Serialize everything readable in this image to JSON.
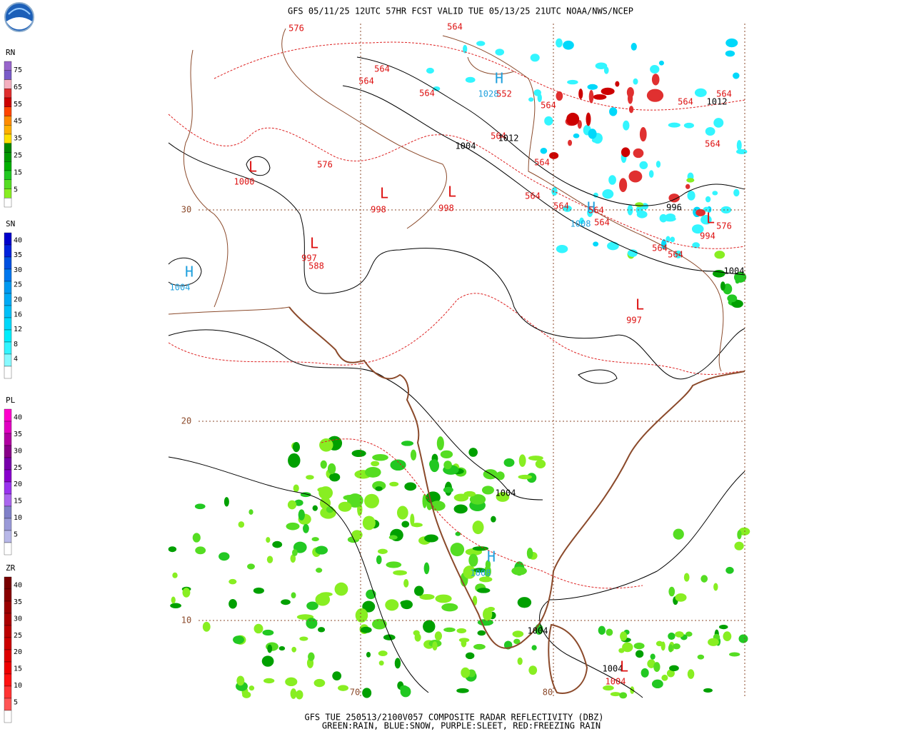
{
  "header": {
    "title": "GFS 05/11/25 12UTC 57HR FCST VALID TUE 05/13/25 21UTC NOAA/NWS/NCEP"
  },
  "footer": {
    "line1": "GFS TUE 250513/2100V057 COMPOSITE RADAR REFLECTIVITY (DBZ)",
    "line2": "GREEN:RAIN, BLUE:SNOW, PURPLE:SLEET, RED:FREEZING RAIN"
  },
  "legends": [
    {
      "name": "RN",
      "labels": [
        "75",
        "65",
        "55",
        "45",
        "35",
        "25",
        "15",
        "5"
      ],
      "colors": [
        "#9966cc",
        "#7a5cc8",
        "#f4b0c0",
        "#e03030",
        "#cc0000",
        "#ff4500",
        "#ff8c00",
        "#ffb000",
        "#ffe000",
        "#008800",
        "#009900",
        "#00b000",
        "#22c822",
        "#55dd22",
        "#88ee22",
        "#ffffff"
      ]
    },
    {
      "name": "SN",
      "labels": [
        "40",
        "35",
        "30",
        "25",
        "20",
        "16",
        "12",
        "8",
        "4"
      ],
      "colors": [
        "#0000cc",
        "#0022dd",
        "#0050e0",
        "#0077ee",
        "#0099f0",
        "#00aaf5",
        "#00c0f8",
        "#00d8fa",
        "#00eefc",
        "#33f5ff",
        "#88faff",
        "#ffffff"
      ]
    },
    {
      "name": "PL",
      "labels": [
        "40",
        "35",
        "30",
        "25",
        "20",
        "15",
        "10",
        "5"
      ],
      "colors": [
        "#ff00cc",
        "#e000c0",
        "#b000a0",
        "#880088",
        "#7700aa",
        "#8800cc",
        "#9933ee",
        "#aa66ee",
        "#8080c8",
        "#9a9ad8",
        "#b8b8e8",
        "#ffffff"
      ]
    },
    {
      "name": "ZR",
      "labels": [
        "40",
        "35",
        "30",
        "25",
        "20",
        "15",
        "10",
        "5"
      ],
      "colors": [
        "#770000",
        "#880000",
        "#990000",
        "#aa0000",
        "#bb0000",
        "#cc0000",
        "#dd0000",
        "#ee0000",
        "#ff1111",
        "#ff3333",
        "#ff5555",
        "#ffffff"
      ]
    }
  ],
  "map": {
    "lat_labels": [
      "30",
      "20",
      "10"
    ],
    "lon_labels": [
      "70",
      "80"
    ],
    "labels": [
      "576",
      "564",
      "564",
      "564",
      "564",
      "H",
      "1028",
      "552",
      "564",
      "564",
      "564",
      "1012",
      "564",
      "1012",
      "1004",
      "564",
      "L",
      "1000",
      "576",
      "564",
      "L",
      "998",
      "L",
      "998",
      "564",
      "564",
      "H",
      "1008",
      "564",
      "564",
      "996",
      "L",
      "576",
      "994",
      "L",
      "997",
      "588",
      "H",
      "1004",
      "564",
      "564",
      "1004",
      "L",
      "997",
      "1004",
      "H",
      "1008",
      "1004",
      "1004",
      "L",
      "1004"
    ]
  }
}
